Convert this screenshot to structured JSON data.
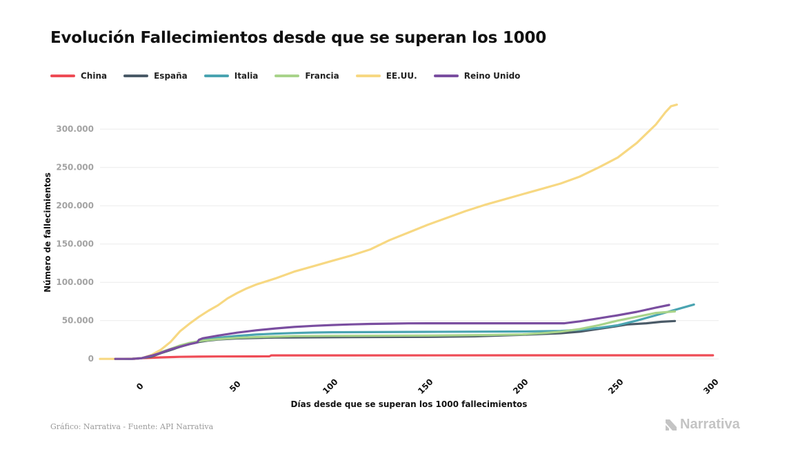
{
  "title": "Evolución Fallecimientos desde que se superan los 1000",
  "footer": {
    "source": "Gráfico: Narrativa - Fuente: API Narrativa",
    "logo_text": "Narrativa"
  },
  "chart_data": {
    "type": "line",
    "xlabel": "Días desde que se superan los 1000 fallecimientos",
    "ylabel": "Número de fallecimientos",
    "xlim": [
      -22,
      303
    ],
    "ylim": [
      -16000,
      347000
    ],
    "xticks": [
      0,
      50,
      100,
      150,
      200,
      250,
      300
    ],
    "yticks": [
      0,
      50000,
      100000,
      150000,
      200000,
      250000,
      300000
    ],
    "ytick_labels": [
      "0",
      "50.000",
      "100.000",
      "150.000",
      "200.000",
      "250.000",
      "300.000"
    ],
    "grid": "horizontal",
    "legend_position": "top-left",
    "series": [
      {
        "name": "China",
        "color": "#ee4b55",
        "points": [
          [
            -4,
            0
          ],
          [
            0,
            1000
          ],
          [
            10,
            2000
          ],
          [
            20,
            2700
          ],
          [
            30,
            3000
          ],
          [
            40,
            3200
          ],
          [
            60,
            3300
          ],
          [
            67,
            3400
          ],
          [
            68,
            4600
          ],
          [
            100,
            4600
          ],
          [
            200,
            4700
          ],
          [
            300,
            4700
          ]
        ]
      },
      {
        "name": "España",
        "color": "#4a5a67",
        "points": [
          [
            -14,
            0
          ],
          [
            -5,
            100
          ],
          [
            0,
            1000
          ],
          [
            5,
            3000
          ],
          [
            10,
            7500
          ],
          [
            15,
            11500
          ],
          [
            20,
            15800
          ],
          [
            25,
            19300
          ],
          [
            30,
            22100
          ],
          [
            35,
            24000
          ],
          [
            40,
            25300
          ],
          [
            50,
            26800
          ],
          [
            70,
            27900
          ],
          [
            100,
            28300
          ],
          [
            150,
            28800
          ],
          [
            175,
            29500
          ],
          [
            200,
            31500
          ],
          [
            220,
            33500
          ],
          [
            230,
            35500
          ],
          [
            245,
            41000
          ],
          [
            255,
            45000
          ],
          [
            265,
            46500
          ],
          [
            273,
            48500
          ],
          [
            280,
            49500
          ]
        ]
      },
      {
        "name": "Italia",
        "color": "#4aa4b1",
        "points": [
          [
            -14,
            0
          ],
          [
            -5,
            200
          ],
          [
            0,
            1000
          ],
          [
            5,
            4000
          ],
          [
            10,
            8200
          ],
          [
            15,
            12400
          ],
          [
            20,
            16500
          ],
          [
            25,
            20000
          ],
          [
            30,
            23200
          ],
          [
            35,
            25500
          ],
          [
            40,
            27600
          ],
          [
            50,
            30000
          ],
          [
            60,
            31800
          ],
          [
            70,
            33000
          ],
          [
            80,
            33800
          ],
          [
            90,
            34400
          ],
          [
            100,
            34800
          ],
          [
            150,
            35300
          ],
          [
            200,
            35800
          ],
          [
            220,
            36500
          ],
          [
            230,
            38000
          ],
          [
            240,
            40500
          ],
          [
            250,
            44000
          ],
          [
            260,
            50000
          ],
          [
            270,
            57000
          ],
          [
            280,
            64000
          ],
          [
            290,
            71000
          ]
        ]
      },
      {
        "name": "Francia",
        "color": "#a8d38a",
        "points": [
          [
            -14,
            0
          ],
          [
            -5,
            200
          ],
          [
            0,
            1000
          ],
          [
            5,
            5000
          ],
          [
            10,
            8900
          ],
          [
            15,
            13000
          ],
          [
            20,
            17500
          ],
          [
            25,
            20800
          ],
          [
            30,
            23300
          ],
          [
            40,
            25800
          ],
          [
            50,
            27500
          ],
          [
            60,
            28500
          ],
          [
            80,
            29800
          ],
          [
            100,
            30100
          ],
          [
            150,
            30500
          ],
          [
            180,
            31200
          ],
          [
            200,
            32000
          ],
          [
            210,
            33500
          ],
          [
            220,
            35500
          ],
          [
            230,
            39000
          ],
          [
            240,
            44000
          ],
          [
            250,
            50000
          ],
          [
            260,
            55000
          ],
          [
            270,
            60000
          ],
          [
            280,
            62000
          ]
        ]
      },
      {
        "name": "EE.UU.",
        "color": "#f7d882",
        "points": [
          [
            -22,
            0
          ],
          [
            -15,
            50
          ],
          [
            -10,
            150
          ],
          [
            -5,
            400
          ],
          [
            0,
            1000
          ],
          [
            5,
            5000
          ],
          [
            10,
            12000
          ],
          [
            15,
            22000
          ],
          [
            20,
            36000
          ],
          [
            25,
            46000
          ],
          [
            30,
            55000
          ],
          [
            35,
            63000
          ],
          [
            40,
            70000
          ],
          [
            45,
            79000
          ],
          [
            50,
            86000
          ],
          [
            55,
            92000
          ],
          [
            60,
            97000
          ],
          [
            70,
            105000
          ],
          [
            80,
            114000
          ],
          [
            90,
            121000
          ],
          [
            100,
            128000
          ],
          [
            110,
            135000
          ],
          [
            120,
            143000
          ],
          [
            130,
            155000
          ],
          [
            140,
            165000
          ],
          [
            150,
            175000
          ],
          [
            160,
            184000
          ],
          [
            170,
            193000
          ],
          [
            180,
            201000
          ],
          [
            190,
            208000
          ],
          [
            200,
            215000
          ],
          [
            210,
            222000
          ],
          [
            220,
            229000
          ],
          [
            230,
            238000
          ],
          [
            240,
            250000
          ],
          [
            250,
            263000
          ],
          [
            260,
            282000
          ],
          [
            265,
            294000
          ],
          [
            270,
            306000
          ],
          [
            275,
            322000
          ],
          [
            278,
            330000
          ],
          [
            281,
            332000
          ]
        ]
      },
      {
        "name": "Reino Unido",
        "color": "#7a4ea0",
        "points": [
          [
            -14,
            0
          ],
          [
            -5,
            150
          ],
          [
            0,
            1000
          ],
          [
            5,
            4200
          ],
          [
            10,
            8000
          ],
          [
            15,
            12500
          ],
          [
            20,
            16000
          ],
          [
            25,
            19300
          ],
          [
            29,
            21500
          ],
          [
            30,
            25000
          ],
          [
            32,
            27000
          ],
          [
            40,
            30500
          ],
          [
            50,
            34300
          ],
          [
            60,
            37300
          ],
          [
            70,
            39800
          ],
          [
            80,
            41700
          ],
          [
            90,
            43200
          ],
          [
            100,
            44300
          ],
          [
            110,
            45100
          ],
          [
            120,
            45700
          ],
          [
            130,
            46100
          ],
          [
            140,
            46400
          ],
          [
            150,
            46500
          ],
          [
            200,
            46500
          ],
          [
            222,
            46500
          ],
          [
            230,
            49000
          ],
          [
            240,
            53000
          ],
          [
            250,
            57000
          ],
          [
            260,
            61500
          ],
          [
            270,
            67000
          ],
          [
            277,
            70500
          ]
        ]
      }
    ]
  }
}
